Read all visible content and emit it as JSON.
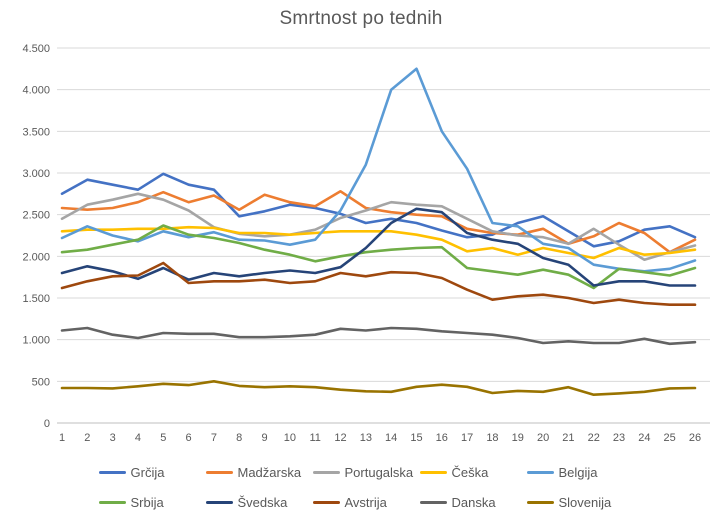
{
  "chart_data": {
    "type": "line",
    "title": "Smrtnost po tednih",
    "xlabel": "",
    "ylabel": "",
    "categories": [
      1,
      2,
      3,
      4,
      5,
      6,
      7,
      8,
      9,
      10,
      11,
      12,
      13,
      14,
      15,
      16,
      17,
      18,
      19,
      20,
      21,
      22,
      23,
      24,
      25,
      26
    ],
    "ylim": [
      0,
      4500
    ],
    "y_tick_step": 500,
    "y_tick_labels": [
      "0",
      "500",
      "1.000",
      "1.500",
      "2.000",
      "2.500",
      "3.000",
      "3.500",
      "4.000",
      "4.500"
    ],
    "grid": true,
    "legend_position": "bottom",
    "series": [
      {
        "key": "grcija",
        "name": "Grčija",
        "color": "#4472C4",
        "values": [
          2750,
          2920,
          2860,
          2800,
          2990,
          2860,
          2800,
          2480,
          2540,
          2620,
          2580,
          2510,
          2400,
          2450,
          2400,
          2310,
          2230,
          2260,
          2400,
          2480,
          2300,
          2120,
          2180,
          2320,
          2360,
          2230
        ]
      },
      {
        "key": "madzarska",
        "name": "Madžarska",
        "color": "#ED7D31",
        "values": [
          2580,
          2560,
          2580,
          2650,
          2770,
          2650,
          2730,
          2560,
          2740,
          2650,
          2600,
          2780,
          2580,
          2530,
          2500,
          2480,
          2330,
          2280,
          2260,
          2330,
          2150,
          2240,
          2400,
          2280,
          2050,
          2200
        ]
      },
      {
        "key": "portugalska",
        "name": "Portugalska",
        "color": "#A5A5A5",
        "values": [
          2450,
          2620,
          2680,
          2750,
          2680,
          2550,
          2350,
          2270,
          2240,
          2260,
          2320,
          2460,
          2550,
          2650,
          2620,
          2600,
          2450,
          2300,
          2250,
          2230,
          2150,
          2330,
          2140,
          1960,
          2050,
          2130
        ]
      },
      {
        "key": "ceska",
        "name": "Češka",
        "color": "#FFC000",
        "values": [
          2300,
          2320,
          2320,
          2330,
          2330,
          2350,
          2340,
          2280,
          2280,
          2260,
          2280,
          2300,
          2300,
          2300,
          2260,
          2200,
          2060,
          2100,
          2020,
          2100,
          2040,
          1980,
          2100,
          2020,
          2040,
          2080
        ]
      },
      {
        "key": "belgija",
        "name": "Belgija",
        "color": "#5B9BD5",
        "values": [
          2220,
          2360,
          2250,
          2180,
          2300,
          2230,
          2290,
          2200,
          2190,
          2140,
          2200,
          2550,
          3100,
          4000,
          4250,
          3500,
          3050,
          2400,
          2360,
          2150,
          2100,
          1900,
          1850,
          1820,
          1850,
          1950
        ]
      },
      {
        "key": "srbija",
        "name": "Srbija",
        "color": "#70AD47",
        "values": [
          2050,
          2080,
          2140,
          2200,
          2370,
          2260,
          2220,
          2160,
          2080,
          2020,
          1940,
          2000,
          2050,
          2080,
          2100,
          2110,
          1860,
          1820,
          1780,
          1840,
          1780,
          1620,
          1850,
          1810,
          1770,
          1860
        ]
      },
      {
        "key": "svedska",
        "name": "Švedska",
        "color": "#264478",
        "values": [
          1800,
          1880,
          1820,
          1730,
          1860,
          1720,
          1800,
          1760,
          1800,
          1830,
          1800,
          1870,
          2100,
          2400,
          2570,
          2530,
          2280,
          2200,
          2150,
          1980,
          1900,
          1650,
          1700,
          1700,
          1650,
          1650
        ]
      },
      {
        "key": "avstrija",
        "name": "Avstrija",
        "color": "#9E480E",
        "values": [
          1620,
          1700,
          1760,
          1770,
          1920,
          1680,
          1700,
          1700,
          1720,
          1680,
          1700,
          1800,
          1760,
          1810,
          1800,
          1740,
          1600,
          1480,
          1520,
          1540,
          1500,
          1440,
          1480,
          1440,
          1420,
          1420
        ]
      },
      {
        "key": "danska",
        "name": "Danska",
        "color": "#636363",
        "values": [
          1110,
          1140,
          1060,
          1020,
          1080,
          1070,
          1070,
          1030,
          1030,
          1040,
          1060,
          1130,
          1110,
          1140,
          1130,
          1100,
          1080,
          1060,
          1020,
          960,
          980,
          960,
          960,
          1010,
          950,
          970
        ]
      },
      {
        "key": "slovenija",
        "name": "Slovenija",
        "color": "#997300",
        "values": [
          420,
          420,
          415,
          440,
          470,
          455,
          500,
          445,
          430,
          440,
          430,
          400,
          380,
          375,
          435,
          460,
          435,
          360,
          385,
          375,
          430,
          340,
          355,
          375,
          415,
          420
        ]
      }
    ]
  },
  "colors": {
    "background": "#FFFFFF",
    "gridline": "#D9D9D9",
    "axis_line": "#BFBFBF",
    "axis_text": "#595959",
    "title_text": "#595959"
  }
}
